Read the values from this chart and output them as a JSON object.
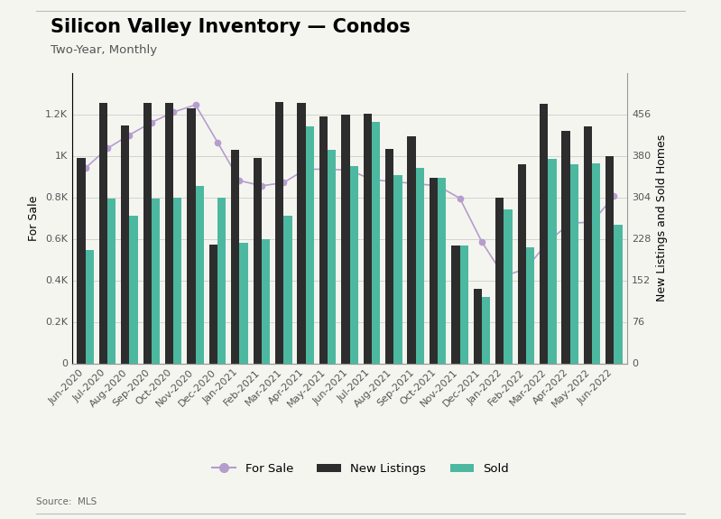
{
  "title": "Silicon Valley Inventory — Condos",
  "subtitle": "Two-Year, Monthly",
  "source": "Source:  MLS",
  "ylabel_left": "For Sale",
  "ylabel_right": "New Listings and Sold Homes",
  "categories": [
    "Jun-2020",
    "Jul-2020",
    "Aug-2020",
    "Sep-2020",
    "Oct-2020",
    "Nov-2020",
    "Dec-2020",
    "Jan-2021",
    "Feb-2021",
    "Mar-2021",
    "Apr-2021",
    "May-2021",
    "Jun-2021",
    "Jul-2021",
    "Aug-2021",
    "Sep-2021",
    "Oct-2021",
    "Nov-2021",
    "Dec-2021",
    "Jan-2022",
    "Feb-2022",
    "Mar-2022",
    "Apr-2022",
    "May-2022",
    "Jun-2022"
  ],
  "for_sale": [
    940,
    1035,
    1100,
    1160,
    1210,
    1245,
    1065,
    880,
    855,
    870,
    935,
    935,
    930,
    885,
    875,
    865,
    855,
    795,
    585,
    420,
    455,
    585,
    675,
    680,
    805
  ],
  "new_listings": [
    376,
    476,
    435,
    476,
    476,
    467,
    218,
    391,
    376,
    478,
    476,
    452,
    455,
    457,
    393,
    415,
    340,
    216,
    137,
    304,
    364,
    475,
    425,
    433,
    380
  ],
  "sold": [
    207,
    302,
    270,
    302,
    304,
    324,
    304,
    220,
    228,
    270,
    433,
    391,
    361,
    442,
    345,
    357,
    340,
    216,
    121,
    281,
    213,
    374,
    364,
    366,
    254
  ],
  "bar_color_new": "#2d2d2d",
  "bar_color_sold": "#4db8a0",
  "line_color": "#b59dcc",
  "line_marker": "o",
  "background_color": "#f5f5f0",
  "plot_bg_color": "#f5f5f0",
  "ylim_left": [
    0,
    1400
  ],
  "ylim_right": [
    0,
    532
  ],
  "yticks_left": [
    0,
    200,
    400,
    600,
    800,
    1000,
    1200
  ],
  "ytick_labels_left": [
    "0",
    "0.2K",
    "0.4K",
    "0.6K",
    "0.8K",
    "1K",
    "1.2K"
  ],
  "yticks_right": [
    0,
    76,
    152,
    228,
    304,
    380,
    456
  ],
  "legend_labels": [
    "For Sale",
    "New Listings",
    "Sold"
  ],
  "legend_colors": [
    "#b59dcc",
    "#2d2d2d",
    "#4db8a0"
  ],
  "title_fontsize": 15,
  "subtitle_fontsize": 9.5,
  "axis_label_fontsize": 9,
  "tick_fontsize": 8,
  "legend_fontsize": 9.5,
  "bar_width": 0.38
}
